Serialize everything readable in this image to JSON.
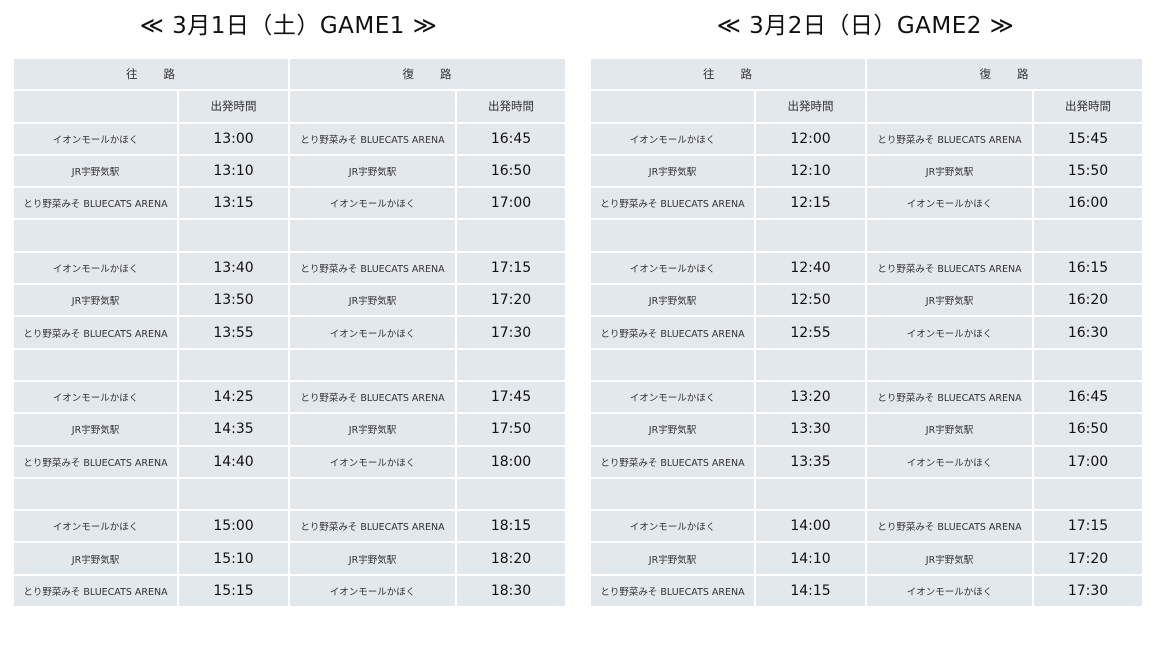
{
  "headers": {
    "outbound": "往　　路",
    "return": "復　　路",
    "departure_time": "出発時間"
  },
  "games": [
    {
      "title": "≪ 3月1日（土）GAME1 ≫",
      "rows": [
        [
          "イオンモールかほく",
          "13:00",
          "とり野菜みそ BLUECATS ARENA",
          "16:45"
        ],
        [
          "JR宇野気駅",
          "13:10",
          "JR宇野気駅",
          "16:50"
        ],
        [
          "とり野菜みそ BLUECATS ARENA",
          "13:15",
          "イオンモールかほく",
          "17:00"
        ],
        null,
        [
          "イオンモールかほく",
          "13:40",
          "とり野菜みそ BLUECATS ARENA",
          "17:15"
        ],
        [
          "JR宇野気駅",
          "13:50",
          "JR宇野気駅",
          "17:20"
        ],
        [
          "とり野菜みそ BLUECATS ARENA",
          "13:55",
          "イオンモールかほく",
          "17:30"
        ],
        null,
        [
          "イオンモールかほく",
          "14:25",
          "とり野菜みそ BLUECATS ARENA",
          "17:45"
        ],
        [
          "JR宇野気駅",
          "14:35",
          "JR宇野気駅",
          "17:50"
        ],
        [
          "とり野菜みそ BLUECATS ARENA",
          "14:40",
          "イオンモールかほく",
          "18:00"
        ],
        null,
        [
          "イオンモールかほく",
          "15:00",
          "とり野菜みそ BLUECATS ARENA",
          "18:15"
        ],
        [
          "JR宇野気駅",
          "15:10",
          "JR宇野気駅",
          "18:20"
        ],
        [
          "とり野菜みそ BLUECATS ARENA",
          "15:15",
          "イオンモールかほく",
          "18:30"
        ]
      ]
    },
    {
      "title": "≪ 3月2日（日）GAME2 ≫",
      "rows": [
        [
          "イオンモールかほく",
          "12:00",
          "とり野菜みそ BLUECATS ARENA",
          "15:45"
        ],
        [
          "JR宇野気駅",
          "12:10",
          "JR宇野気駅",
          "15:50"
        ],
        [
          "とり野菜みそ BLUECATS ARENA",
          "12:15",
          "イオンモールかほく",
          "16:00"
        ],
        null,
        [
          "イオンモールかほく",
          "12:40",
          "とり野菜みそ BLUECATS ARENA",
          "16:15"
        ],
        [
          "JR宇野気駅",
          "12:50",
          "JR宇野気駅",
          "16:20"
        ],
        [
          "とり野菜みそ BLUECATS ARENA",
          "12:55",
          "イオンモールかほく",
          "16:30"
        ],
        null,
        [
          "イオンモールかほく",
          "13:20",
          "とり野菜みそ BLUECATS ARENA",
          "16:45"
        ],
        [
          "JR宇野気駅",
          "13:30",
          "JR宇野気駅",
          "16:50"
        ],
        [
          "とり野菜みそ BLUECATS ARENA",
          "13:35",
          "イオンモールかほく",
          "17:00"
        ],
        null,
        [
          "イオンモールかほく",
          "14:00",
          "とり野菜みそ BLUECATS ARENA",
          "17:15"
        ],
        [
          "JR宇野気駅",
          "14:10",
          "JR宇野気駅",
          "17:20"
        ],
        [
          "とり野菜みそ BLUECATS ARENA",
          "14:15",
          "イオンモールかほく",
          "17:30"
        ]
      ]
    }
  ]
}
